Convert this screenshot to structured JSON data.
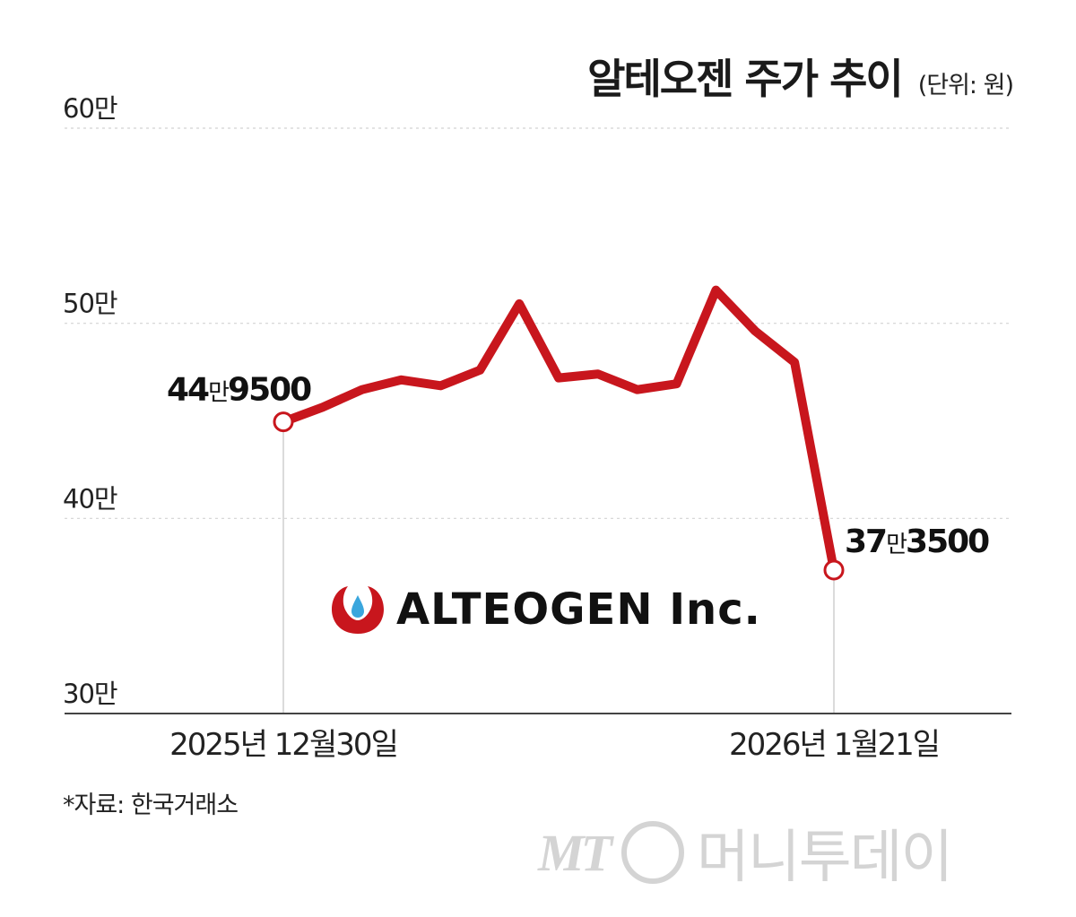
{
  "title": "알테오젠 주가 추이",
  "unit": "(단위: 원)",
  "source": "*자료: 한국거래소",
  "logo": {
    "text": "ALTEOGEN Inc.",
    "brand_color": "#c8161d"
  },
  "watermark": {
    "mark": "MT",
    "name": "머니투데이"
  },
  "chart_data": {
    "type": "line",
    "title": "알테오젠 주가 추이",
    "xlabel": "",
    "ylabel": "",
    "ylim": [
      300000,
      600000
    ],
    "yticks": [
      {
        "value": 300000,
        "label": "30만"
      },
      {
        "value": 400000,
        "label": "40만"
      },
      {
        "value": 500000,
        "label": "50만"
      },
      {
        "value": 600000,
        "label": "60만"
      }
    ],
    "grid": true,
    "x_labels": [
      {
        "index": 0,
        "label": "2025년 12월30일"
      },
      {
        "index": 14,
        "label": "2026년 1월21일"
      }
    ],
    "series": [
      {
        "color": "#c8161d",
        "values": [
          449500,
          457000,
          466000,
          471000,
          468000,
          476000,
          510000,
          472000,
          474000,
          466000,
          469000,
          517000,
          496000,
          480000,
          373500
        ]
      }
    ],
    "annotations": [
      {
        "index": 0,
        "value": 449500,
        "num1": "44",
        "unit": "만",
        "num2": "9500"
      },
      {
        "index": 14,
        "value": 373500,
        "num1": "37",
        "unit": "만",
        "num2": "3500"
      }
    ]
  }
}
